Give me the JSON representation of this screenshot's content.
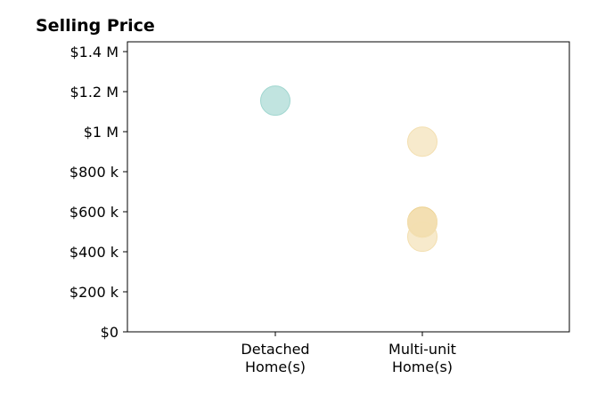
{
  "chart_data": {
    "type": "scatter",
    "title": "Selling Price",
    "xlabel": "",
    "ylabel": "",
    "categories": [
      [
        "Detached",
        "Home(s)"
      ],
      [
        "Multi-unit",
        "Home(s)"
      ]
    ],
    "ylim": [
      0,
      1400000
    ],
    "y_ticks": [
      {
        "value": 0,
        "label": "$0"
      },
      {
        "value": 200000,
        "label": "$200 k"
      },
      {
        "value": 400000,
        "label": "$400 k"
      },
      {
        "value": 600000,
        "label": "$600 k"
      },
      {
        "value": 800000,
        "label": "$800 k"
      },
      {
        "value": 1000000,
        "label": "$1 M"
      },
      {
        "value": 1200000,
        "label": "$1.2 M"
      },
      {
        "value": 1400000,
        "label": "$1.4 M"
      }
    ],
    "grid": false,
    "points": [
      {
        "category": 0,
        "y": 1155000,
        "color": "#9fd6cf"
      },
      {
        "category": 1,
        "y": 950000,
        "color": "#f3dfb0"
      },
      {
        "category": 1,
        "y": 550000,
        "color": "#ecd08e"
      },
      {
        "category": 1,
        "y": 545000,
        "color": "#f3dfb0"
      },
      {
        "category": 1,
        "y": 475000,
        "color": "#f3dfb0"
      }
    ]
  }
}
